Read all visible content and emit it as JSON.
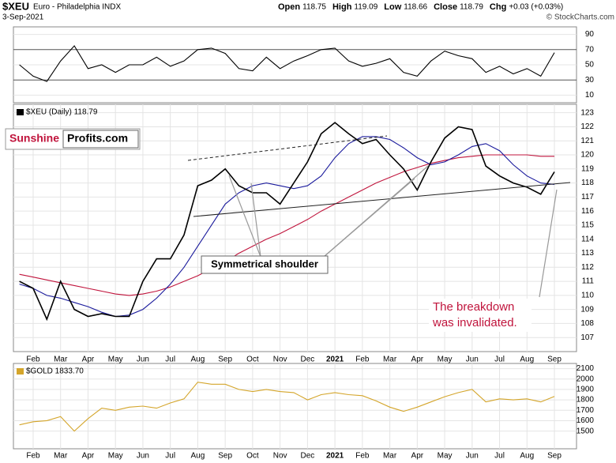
{
  "header": {
    "symbol": "$XEU",
    "name": "Euro - Philadelphia INDX",
    "date": "3-Sep-2021",
    "quote": [
      {
        "label": "Open",
        "value": "118.75"
      },
      {
        "label": "High",
        "value": "119.09"
      },
      {
        "label": "Low",
        "value": "118.66"
      },
      {
        "label": "Close",
        "value": "118.79"
      },
      {
        "label": "Chg",
        "value": "+0.03 (+0.03%)"
      }
    ],
    "copyright": "© StockCharts.com"
  },
  "logo": {
    "part1": "Sunshine",
    "part2": "Profits.com"
  },
  "chart_data": [
    {
      "type": "line",
      "series": [
        {
          "color": "#000000",
          "values": [
            50,
            35,
            28,
            55,
            75,
            45,
            50,
            40,
            50,
            50,
            60,
            48,
            55,
            70,
            72,
            65,
            45,
            42,
            60,
            45,
            55,
            62,
            70,
            72,
            55,
            48,
            52,
            58,
            40,
            35,
            55,
            68,
            62,
            58,
            40,
            48,
            38,
            45,
            35,
            66
          ]
        }
      ],
      "ylim": [
        0,
        100
      ],
      "yticks": [
        90,
        70,
        50,
        30,
        10
      ]
    },
    {
      "type": "line",
      "categories": [
        null,
        "Feb",
        null,
        "Mar",
        null,
        "Apr",
        null,
        "May",
        null,
        "Jun",
        null,
        "Jul",
        null,
        "Aug",
        null,
        "Sep",
        null,
        "Oct",
        null,
        "Nov",
        null,
        "Dec",
        null,
        "2021",
        null,
        "Feb",
        null,
        "Mar",
        null,
        "Apr",
        null,
        "May",
        null,
        "Jun",
        null,
        "Jul",
        null,
        "Aug",
        null,
        "Sep"
      ],
      "series": [
        {
          "name": "$XEU (Daily) 118.79",
          "color": "#000000",
          "values": [
            111.0,
            110.5,
            108.3,
            111.0,
            109.0,
            108.5,
            108.7,
            108.5,
            108.5,
            111.0,
            112.6,
            112.6,
            114.3,
            117.8,
            118.2,
            119.0,
            117.8,
            117.3,
            117.3,
            116.5,
            118.0,
            119.5,
            121.5,
            122.3,
            121.5,
            120.8,
            121.1,
            120.0,
            119.0,
            117.5,
            119.5,
            121.2,
            122.0,
            121.8,
            119.2,
            118.5,
            118.0,
            117.7,
            117.2,
            118.79
          ]
        },
        {
          "color": "#1a1a9c",
          "values": [
            110.8,
            110.5,
            110.0,
            109.8,
            109.5,
            109.2,
            108.8,
            108.5,
            108.6,
            109.0,
            109.8,
            110.8,
            112.0,
            113.5,
            115.0,
            116.5,
            117.3,
            117.8,
            118.0,
            117.8,
            117.6,
            117.8,
            118.5,
            119.8,
            120.8,
            121.3,
            121.3,
            121.1,
            120.5,
            119.8,
            119.3,
            119.5,
            120.0,
            120.6,
            120.8,
            120.3,
            119.3,
            118.5,
            118.0,
            117.9
          ]
        },
        {
          "color": "#c0143c",
          "values": [
            111.5,
            111.3,
            111.1,
            110.9,
            110.7,
            110.5,
            110.3,
            110.1,
            110.0,
            110.1,
            110.3,
            110.6,
            111.0,
            111.4,
            111.9,
            112.4,
            113.0,
            113.5,
            114.0,
            114.4,
            114.9,
            115.4,
            116.0,
            116.5,
            117.0,
            117.5,
            118.0,
            118.4,
            118.8,
            119.1,
            119.4,
            119.6,
            119.8,
            119.9,
            120.0,
            120.0,
            120.0,
            120.0,
            119.9,
            119.9
          ]
        }
      ],
      "ylim": [
        106,
        123.6
      ],
      "yticks": [
        107,
        108,
        109,
        110,
        111,
        112,
        113,
        114,
        115,
        116,
        117,
        118,
        119,
        120,
        121,
        122,
        123
      ],
      "annotations": [
        "Symmetrical shoulder",
        "The breakdown",
        "was invalidated."
      ]
    },
    {
      "type": "line",
      "categories": [
        null,
        "Feb",
        null,
        "Mar",
        null,
        "Apr",
        null,
        "May",
        null,
        "Jun",
        null,
        "Jul",
        null,
        "Aug",
        null,
        "Sep",
        null,
        "Oct",
        null,
        "Nov",
        null,
        "Dec",
        null,
        "2021",
        null,
        "Feb",
        null,
        "Mar",
        null,
        "Apr",
        null,
        "May",
        null,
        "Jun",
        null,
        "Jul",
        null,
        "Aug",
        null,
        "Sep"
      ],
      "series": [
        {
          "name": "$GOLD 1833.70",
          "color": "#d4a52a",
          "values": [
            1560,
            1590,
            1600,
            1640,
            1500,
            1620,
            1720,
            1700,
            1730,
            1740,
            1720,
            1770,
            1810,
            1970,
            1950,
            1950,
            1900,
            1880,
            1900,
            1880,
            1870,
            1800,
            1850,
            1870,
            1850,
            1840,
            1790,
            1730,
            1690,
            1730,
            1780,
            1830,
            1870,
            1900,
            1780,
            1810,
            1800,
            1810,
            1780,
            1833.7
          ]
        }
      ],
      "ylim": [
        1330,
        2150
      ],
      "yticks": [
        1500,
        1600,
        1700,
        1800,
        1900,
        2000,
        2100
      ]
    }
  ]
}
